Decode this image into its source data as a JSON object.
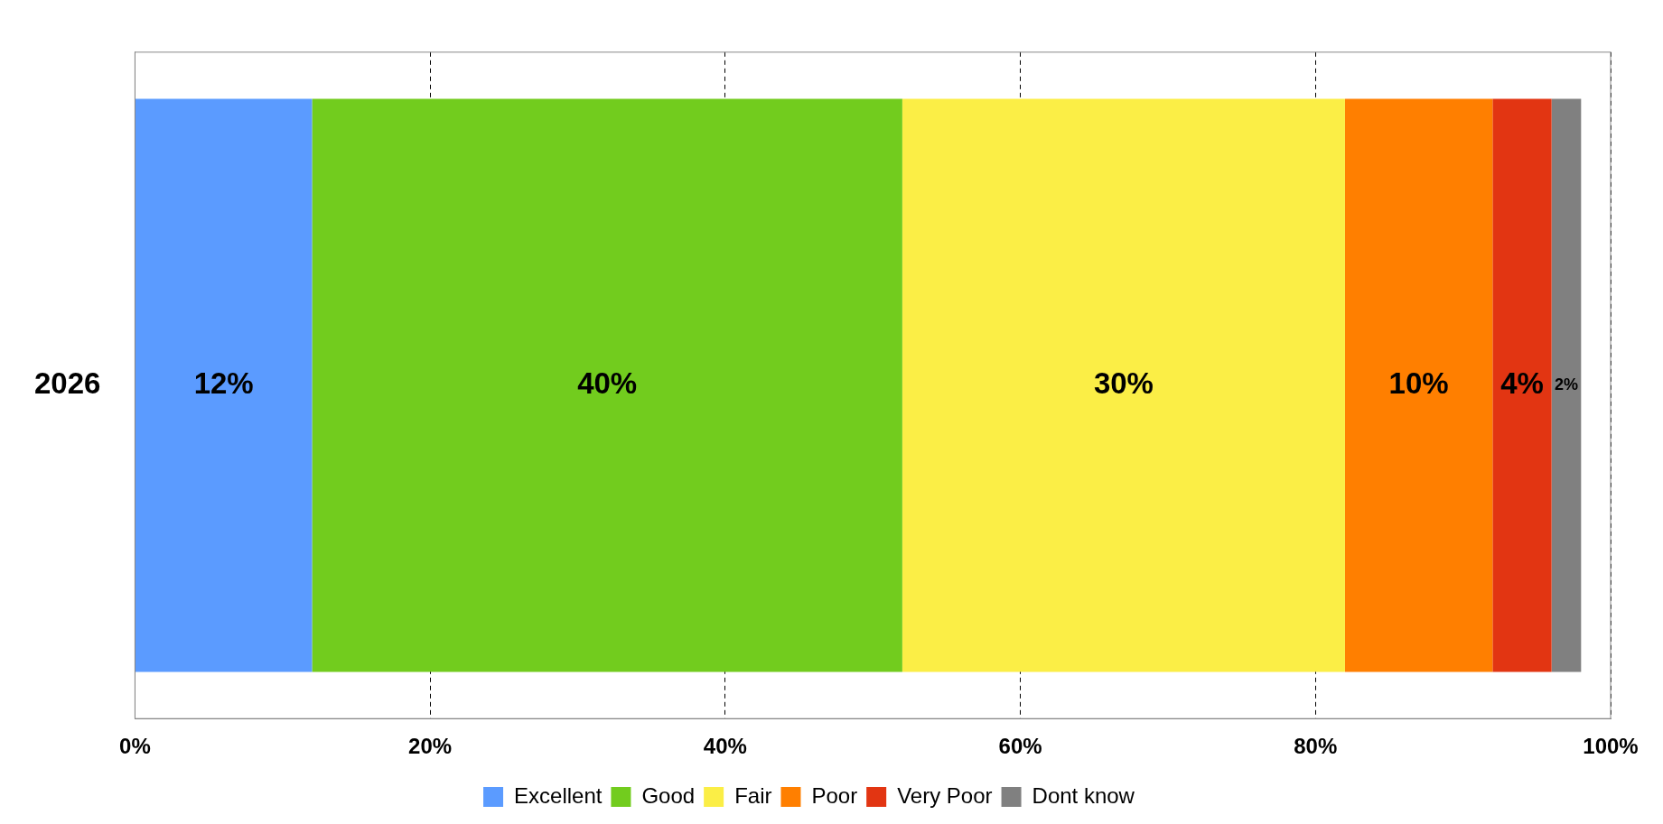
{
  "chart_data": {
    "type": "bar",
    "orientation": "horizontal",
    "stacked": true,
    "categories": [
      "2026"
    ],
    "series": [
      {
        "name": "Excellent",
        "color": "#5b9bff",
        "values": [
          12
        ],
        "value_labels": [
          "12%"
        ]
      },
      {
        "name": "Good",
        "color": "#72cc1e",
        "values": [
          40
        ],
        "value_labels": [
          "40%"
        ]
      },
      {
        "name": "Fair",
        "color": "#fbee46",
        "values": [
          30
        ],
        "value_labels": [
          "30%"
        ]
      },
      {
        "name": "Poor",
        "color": "#ff7f00",
        "values": [
          10
        ],
        "value_labels": [
          "10%"
        ]
      },
      {
        "name": "Very Poor",
        "color": "#e23512",
        "values": [
          4
        ],
        "value_labels": [
          "4%"
        ]
      },
      {
        "name": "Dont know",
        "color": "#808080",
        "values": [
          2
        ],
        "value_labels": [
          "2%"
        ]
      }
    ],
    "xlim": [
      0,
      100
    ],
    "xticks": [
      {
        "value": 0,
        "label": "0%"
      },
      {
        "value": 20,
        "label": "20%"
      },
      {
        "value": 40,
        "label": "40%"
      },
      {
        "value": 60,
        "label": "60%"
      },
      {
        "value": 80,
        "label": "80%"
      },
      {
        "value": 100,
        "label": "100%"
      }
    ],
    "grid": "x",
    "legend": "bottom"
  }
}
